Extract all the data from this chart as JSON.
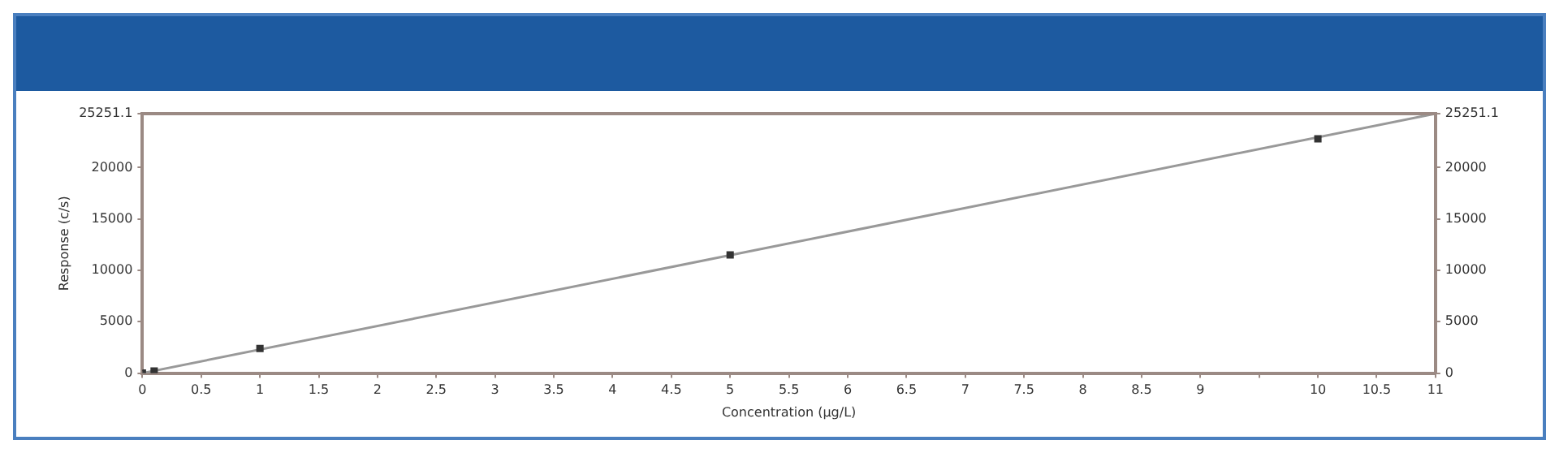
{
  "chart_data": {
    "type": "scatter",
    "xlabel": "Concentration (µg/L)",
    "ylabel": "Response (c/s)",
    "xlim": [
      0,
      11
    ],
    "ylim": [
      0,
      25251.1
    ],
    "y2lim": [
      0,
      25251.1
    ],
    "xticks": [
      0,
      0.5,
      1,
      1.5,
      2,
      2.5,
      3,
      3.5,
      4,
      4.5,
      5,
      5.5,
      6,
      6.5,
      7,
      7.5,
      8,
      8.5,
      9,
      {
        "value": 9.5,
        "label": null
      },
      10,
      10.5,
      11
    ],
    "yticks": [
      0,
      5000,
      10000,
      15000,
      20000,
      25251.1
    ],
    "y2ticks": [
      0,
      5000,
      10000,
      15000,
      20000,
      25251.1
    ],
    "grid": false,
    "legend": false,
    "marker": "square",
    "series": [
      {
        "type": "scatter",
        "color": "#333333",
        "x": [
          0,
          0.1,
          1,
          5,
          10
        ],
        "values": [
          0,
          200,
          2400,
          11500,
          22800
        ]
      },
      {
        "type": "line",
        "color": "#999999",
        "x": [
          0,
          11
        ],
        "values": [
          0,
          25251.1
        ],
        "marker": "none",
        "line_style": "solid"
      }
    ]
  }
}
